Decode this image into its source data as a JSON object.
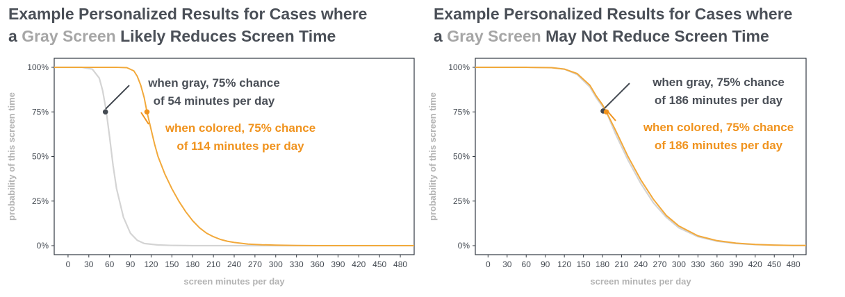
{
  "panels": [
    {
      "title_prefix": "Example Personalized Results for Cases where",
      "title_line2_start": "a ",
      "title_highlight": "Gray Screen",
      "title_line2_end": " Likely Reduces Screen Time"
    },
    {
      "title_prefix": "Example Personalized Results for Cases where",
      "title_line2_start": "a ",
      "title_highlight": "Gray Screen",
      "title_line2_end": " May Not Reduce Screen Time"
    }
  ],
  "colors": {
    "gray_series": "#d4d4d4",
    "orange_series": "#f2a93b",
    "gray_point": "#444a52",
    "orange_point": "#f0931e",
    "title_highlight": "#a6a6a6"
  },
  "chart_data": [
    {
      "type": "line",
      "xlabel": "screen minutes per day",
      "ylabel": "probability of this screen time",
      "xlim": [
        -20,
        500
      ],
      "ylim": [
        0,
        1
      ],
      "xticks": [
        0,
        30,
        60,
        90,
        120,
        150,
        180,
        210,
        240,
        270,
        300,
        330,
        360,
        390,
        420,
        450,
        480
      ],
      "yticks": [
        {
          "value": 0,
          "label": "0%"
        },
        {
          "value": 0.25,
          "label": "25%"
        },
        {
          "value": 0.5,
          "label": "50%"
        },
        {
          "value": 0.75,
          "label": "75%"
        },
        {
          "value": 1,
          "label": "100%"
        }
      ],
      "series": [
        {
          "color_key": "gray_series",
          "x": [
            -20,
            0,
            20,
            35,
            45,
            50,
            55,
            60,
            65,
            70,
            80,
            90,
            100,
            110,
            130,
            150,
            180,
            210,
            300,
            500
          ],
          "y": [
            1,
            1,
            1,
            0.99,
            0.94,
            0.87,
            0.76,
            0.61,
            0.45,
            0.32,
            0.16,
            0.07,
            0.03,
            0.012,
            0.004,
            0.001,
            0,
            0,
            0,
            0
          ]
        },
        {
          "color_key": "orange_series",
          "x": [
            -20,
            0,
            40,
            70,
            85,
            95,
            100,
            105,
            110,
            114,
            120,
            125,
            130,
            140,
            150,
            160,
            170,
            180,
            190,
            200,
            210,
            220,
            230,
            240,
            260,
            280,
            300,
            330,
            360,
            390,
            420,
            450,
            480,
            500
          ],
          "y": [
            1,
            1,
            1,
            1,
            0.998,
            0.98,
            0.95,
            0.9,
            0.83,
            0.75,
            0.65,
            0.57,
            0.5,
            0.4,
            0.32,
            0.25,
            0.19,
            0.14,
            0.1,
            0.07,
            0.05,
            0.035,
            0.025,
            0.018,
            0.009,
            0.005,
            0.003,
            0.001,
            0,
            0,
            0,
            0,
            0,
            0
          ]
        }
      ],
      "points": [
        {
          "x": 54,
          "y": 0.75,
          "color_key": "gray_point"
        },
        {
          "x": 114,
          "y": 0.75,
          "color_key": "orange_point"
        }
      ],
      "annotations": [
        {
          "lines": [
            "when gray, 75% chance",
            "of 54 minutes per day"
          ],
          "color": "gray"
        },
        {
          "lines": [
            "when colored, 75% chance",
            "of 114 minutes per day"
          ],
          "color": "orange"
        }
      ]
    },
    {
      "type": "line",
      "xlabel": "screen minutes per day",
      "ylabel": "probability of this screen time",
      "xlim": [
        -20,
        500
      ],
      "ylim": [
        0,
        1
      ],
      "xticks": [
        0,
        30,
        60,
        90,
        120,
        150,
        180,
        210,
        240,
        270,
        300,
        330,
        360,
        390,
        420,
        450,
        480
      ],
      "yticks": [
        {
          "value": 0,
          "label": "0%"
        },
        {
          "value": 0.25,
          "label": "25%"
        },
        {
          "value": 0.5,
          "label": "50%"
        },
        {
          "value": 0.75,
          "label": "75%"
        },
        {
          "value": 1,
          "label": "100%"
        }
      ],
      "series": [
        {
          "color_key": "gray_series",
          "x": [
            -20,
            0,
            60,
            100,
            120,
            140,
            160,
            170,
            180,
            186,
            200,
            220,
            240,
            260,
            280,
            300,
            330,
            360,
            390,
            420,
            450,
            480,
            500
          ],
          "y": [
            1,
            1,
            1,
            0.998,
            0.99,
            0.96,
            0.89,
            0.83,
            0.78,
            0.75,
            0.63,
            0.48,
            0.35,
            0.24,
            0.16,
            0.1,
            0.05,
            0.025,
            0.012,
            0.006,
            0.003,
            0.001,
            0.001
          ]
        },
        {
          "color_key": "orange_series",
          "x": [
            -20,
            0,
            60,
            100,
            120,
            140,
            160,
            170,
            180,
            186,
            200,
            220,
            240,
            260,
            280,
            300,
            330,
            360,
            390,
            420,
            450,
            480,
            500
          ],
          "y": [
            1,
            1,
            1,
            0.998,
            0.99,
            0.965,
            0.9,
            0.84,
            0.79,
            0.75,
            0.65,
            0.5,
            0.37,
            0.26,
            0.17,
            0.11,
            0.055,
            0.028,
            0.014,
            0.007,
            0.003,
            0.001,
            0.001
          ]
        }
      ],
      "points": [
        {
          "x": 181,
          "y": 0.755,
          "color_key": "gray_point"
        },
        {
          "x": 186,
          "y": 0.75,
          "color_key": "orange_point"
        }
      ],
      "annotations": [
        {
          "lines": [
            "when gray, 75% chance",
            "of 186 minutes per day"
          ],
          "color": "gray"
        },
        {
          "lines": [
            "when colored, 75% chance",
            "of 186 minutes per day"
          ],
          "color": "orange"
        }
      ]
    }
  ]
}
